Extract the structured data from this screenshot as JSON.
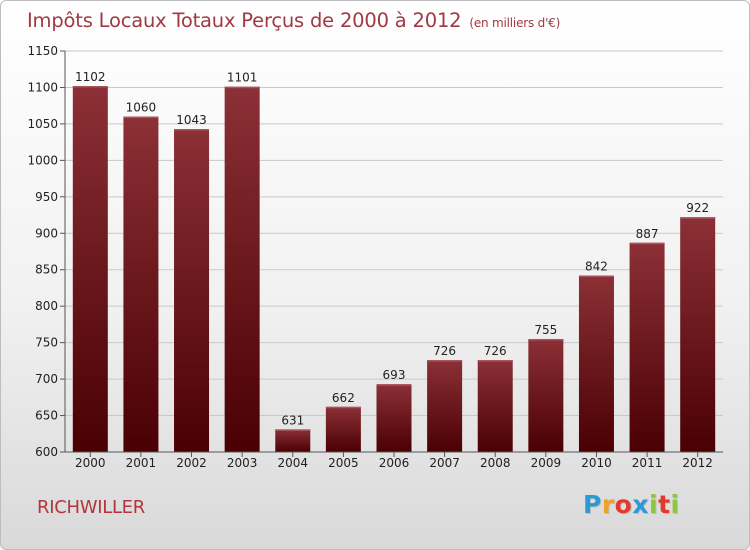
{
  "header": {
    "title": "Impôts Locaux Totaux Perçus de 2000 à 2012",
    "unit": "(en milliers d'€)"
  },
  "commune": "RICHWILLER",
  "logo": {
    "letters": [
      "P",
      "r",
      "o",
      "x",
      "i",
      "t",
      "i"
    ],
    "colors": [
      "#2a9ad6",
      "#f0a12a",
      "#e2392c",
      "#2a9ad6",
      "#8dc63f",
      "#e2392c",
      "#8dc63f"
    ]
  },
  "colors": {
    "bar_top": "#8b3036",
    "bar_bottom": "#4a0003",
    "grid": "#c9c9c9"
  },
  "chart_data": {
    "type": "bar",
    "title": "Impôts Locaux Totaux Perçus de 2000 à 2012",
    "subtitle": "(en milliers d'€)",
    "categories": [
      "2000",
      "2001",
      "2002",
      "2003",
      "2004",
      "2005",
      "2006",
      "2007",
      "2008",
      "2009",
      "2010",
      "2011",
      "2012"
    ],
    "values": [
      1102,
      1060,
      1043,
      1101,
      631,
      662,
      693,
      726,
      726,
      755,
      842,
      887,
      922
    ],
    "ylim": [
      600,
      1150
    ],
    "yticks": [
      600,
      650,
      700,
      750,
      800,
      850,
      900,
      950,
      1000,
      1050,
      1100,
      1150
    ],
    "grid": true,
    "data_labels": true
  }
}
